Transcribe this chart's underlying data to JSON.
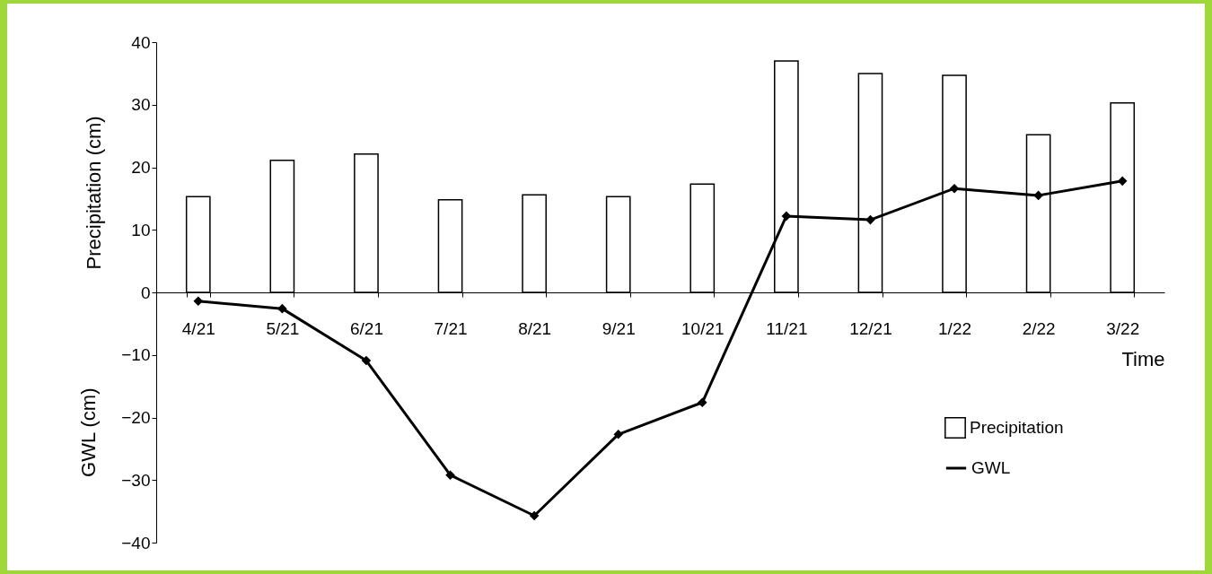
{
  "chart_data": {
    "type": "bar",
    "xlabel": "Time",
    "ylabel": "Precipitation (cm)",
    "annotations": [
      "GWL (cm)"
    ],
    "categories": [
      "4/21",
      "5/21",
      "6/21",
      "7/21",
      "8/21",
      "9/21",
      "10/21",
      "11/21",
      "12/21",
      "1/22",
      "2/22",
      "3/22"
    ],
    "series": [
      {
        "name": "Precipitation",
        "color": "#ffffff",
        "values": [
          15.3,
          21.1,
          22.1,
          14.8,
          15.6,
          15.3,
          17.3,
          37.0,
          35.0,
          34.7,
          25.2,
          30.3
        ]
      },
      {
        "name": "GWL",
        "type": "line",
        "color": "#000000",
        "values": [
          -1.4,
          -2.6,
          -10.9,
          -29.2,
          -35.7,
          -22.7,
          -17.6,
          12.2,
          11.6,
          16.6,
          15.5,
          17.8
        ]
      }
    ],
    "ylim": [
      -40,
      40
    ],
    "yticks": [
      -40,
      -30,
      -20,
      -10,
      0,
      10,
      20,
      30,
      40
    ],
    "grid": false,
    "legend": "right",
    "marker": "diamond",
    "line_style": "solid"
  }
}
